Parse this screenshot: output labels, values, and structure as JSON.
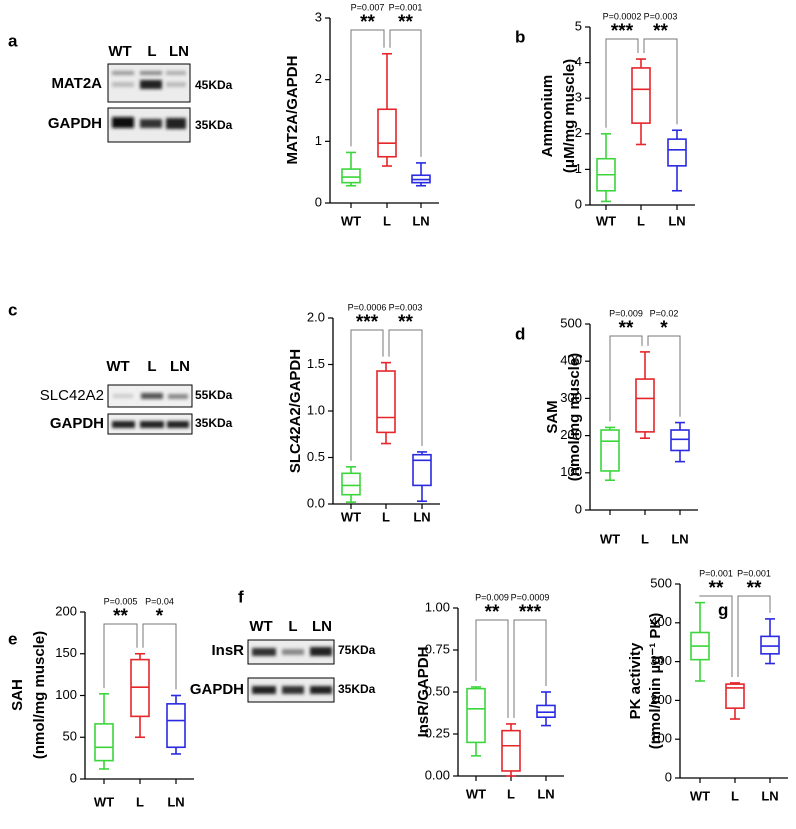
{
  "panel_labels": [
    "a",
    "b",
    "c",
    "d",
    "e",
    "f",
    "g"
  ],
  "blots": [
    {
      "lanes": [
        "WT",
        "L",
        "LN"
      ],
      "rows": [
        {
          "name": "MAT2A",
          "size": "45KDa"
        },
        {
          "name": "GAPDH",
          "size": "35KDa"
        }
      ]
    },
    {
      "lanes": [
        "WT",
        "L",
        "LN"
      ],
      "rows": [
        {
          "name": "SLC42A2",
          "size": "55KDa"
        },
        {
          "name": "GAPDH",
          "size": "35KDa"
        }
      ]
    },
    {
      "lanes": [
        "WT",
        "L",
        "LN"
      ],
      "rows": [
        {
          "name": "InsR",
          "size": "75KDa"
        },
        {
          "name": "GAPDH",
          "size": "35KDa"
        }
      ]
    }
  ],
  "chart_data": [
    {
      "type": "box",
      "ylabel": [
        "MAT2A/GAPDH"
      ],
      "categories": [
        "WT",
        "L",
        "LN"
      ],
      "colors": [
        "#3cd63c",
        "#e5262b",
        "#2a2ae0"
      ],
      "boxes": [
        {
          "min": 0.28,
          "q1": 0.33,
          "median": 0.42,
          "q3": 0.55,
          "max": 0.82
        },
        {
          "min": 0.6,
          "q1": 0.75,
          "median": 0.97,
          "q3": 1.52,
          "max": 2.42
        },
        {
          "min": 0.28,
          "q1": 0.33,
          "median": 0.38,
          "q3": 0.45,
          "max": 0.65
        }
      ],
      "ylim": [
        0,
        3
      ],
      "yticks": [
        0,
        1,
        2,
        3
      ],
      "comparisons": [
        {
          "p_label": "P=0.007",
          "stars": "**"
        },
        {
          "p_label": "P=0.001",
          "stars": "**"
        }
      ]
    },
    {
      "type": "box",
      "ylabel": [
        "Ammonium",
        "(μM/mg muscle)"
      ],
      "categories": [
        "WT",
        "L",
        "LN"
      ],
      "colors": [
        "#3cd63c",
        "#e5262b",
        "#2a2ae0"
      ],
      "boxes": [
        {
          "min": 0.1,
          "q1": 0.4,
          "median": 0.85,
          "q3": 1.3,
          "max": 2.0
        },
        {
          "min": 1.7,
          "q1": 2.3,
          "median": 3.25,
          "q3": 3.85,
          "max": 4.1
        },
        {
          "min": 0.4,
          "q1": 1.1,
          "median": 1.55,
          "q3": 1.85,
          "max": 2.1
        }
      ],
      "ylim": [
        0,
        5
      ],
      "yticks": [
        0,
        1,
        2,
        3,
        4,
        5
      ],
      "comparisons": [
        {
          "p_label": "P=0.0002",
          "stars": "***"
        },
        {
          "p_label": "P=0.003",
          "stars": "**"
        }
      ]
    },
    {
      "type": "box",
      "ylabel": [
        "SLC42A2/GAPDH"
      ],
      "categories": [
        "WT",
        "L",
        "LN"
      ],
      "colors": [
        "#3cd63c",
        "#e5262b",
        "#2a2ae0"
      ],
      "boxes": [
        {
          "min": 0.02,
          "q1": 0.1,
          "median": 0.2,
          "q3": 0.33,
          "max": 0.4
        },
        {
          "min": 0.65,
          "q1": 0.77,
          "median": 0.93,
          "q3": 1.43,
          "max": 1.52
        },
        {
          "min": 0.03,
          "q1": 0.2,
          "median": 0.47,
          "q3": 0.53,
          "max": 0.56
        }
      ],
      "ylim": [
        0,
        2
      ],
      "yticks": [
        {
          "value": 0,
          "label": "0.0"
        },
        0.5,
        {
          "value": 1,
          "label": "1.0"
        },
        1.5,
        {
          "value": 2,
          "label": "2.0"
        }
      ],
      "comparisons": [
        {
          "p_label": "P=0.0006",
          "stars": "***"
        },
        {
          "p_label": "P=0.003",
          "stars": "**"
        }
      ]
    },
    {
      "type": "box",
      "ylabel": [
        "SAM",
        "(nmol/mg muscle)"
      ],
      "categories": [
        "WT",
        "L",
        "LN"
      ],
      "colors": [
        "#3cd63c",
        "#e5262b",
        "#2a2ae0"
      ],
      "boxes": [
        {
          "min": 80,
          "q1": 105,
          "median": 185,
          "q3": 215,
          "max": 222
        },
        {
          "min": 193,
          "q1": 210,
          "median": 300,
          "q3": 352,
          "max": 425
        },
        {
          "min": 130,
          "q1": 160,
          "median": 190,
          "q3": 215,
          "max": 235
        }
      ],
      "ylim": [
        0,
        500
      ],
      "yticks": [
        0,
        100,
        200,
        300,
        400,
        500
      ],
      "comparisons": [
        {
          "p_label": "P=0.009",
          "stars": "**"
        },
        {
          "p_label": "P=0.02",
          "stars": "*"
        }
      ]
    },
    {
      "type": "box",
      "ylabel": [
        "SAH",
        "(nmol/mg muscle)"
      ],
      "categories": [
        "WT",
        "L",
        "LN"
      ],
      "colors": [
        "#3cd63c",
        "#e5262b",
        "#2a2ae0"
      ],
      "boxes": [
        {
          "min": 12,
          "q1": 22,
          "median": 38,
          "q3": 66,
          "max": 102
        },
        {
          "min": 50,
          "q1": 75,
          "median": 110,
          "q3": 143,
          "max": 150
        },
        {
          "min": 30,
          "q1": 38,
          "median": 70,
          "q3": 90,
          "max": 100
        }
      ],
      "ylim": [
        0,
        200
      ],
      "yticks": [
        0,
        50,
        100,
        150,
        200
      ],
      "comparisons": [
        {
          "p_label": "P=0.005",
          "stars": "**"
        },
        {
          "p_label": "P=0.04",
          "stars": "*"
        }
      ]
    },
    {
      "type": "box",
      "ylabel": [
        "InsR/GAPDH"
      ],
      "categories": [
        "WT",
        "L",
        "LN"
      ],
      "colors": [
        "#3cd63c",
        "#e5262b",
        "#2a2ae0"
      ],
      "boxes": [
        {
          "min": 0.12,
          "q1": 0.2,
          "median": 0.4,
          "q3": 0.52,
          "max": 0.53
        },
        {
          "min": 0.0,
          "q1": 0.03,
          "median": 0.18,
          "q3": 0.27,
          "max": 0.31
        },
        {
          "min": 0.3,
          "q1": 0.35,
          "median": 0.38,
          "q3": 0.42,
          "max": 0.5
        }
      ],
      "ylim": [
        0,
        1
      ],
      "yticks": [
        {
          "value": 0,
          "label": "0.00"
        },
        0.25,
        {
          "value": 0.5,
          "label": "0.50"
        },
        0.75,
        {
          "value": 1,
          "label": "1.00"
        }
      ],
      "comparisons": [
        {
          "p_label": "P=0.009",
          "stars": "**"
        },
        {
          "p_label": "P=0.0009",
          "stars": "***"
        }
      ]
    },
    {
      "type": "box",
      "ylabel": [
        "PK activity",
        "(nmol/min µg⁻¹ PK)"
      ],
      "categories": [
        "WT",
        "L",
        "LN"
      ],
      "colors": [
        "#3cd63c",
        "#e5262b",
        "#2a2ae0"
      ],
      "boxes": [
        {
          "min": 250,
          "q1": 305,
          "median": 340,
          "q3": 375,
          "max": 452
        },
        {
          "min": 152,
          "q1": 180,
          "median": 232,
          "q3": 242,
          "max": 245
        },
        {
          "min": 295,
          "q1": 320,
          "median": 340,
          "q3": 365,
          "max": 410
        }
      ],
      "ylim": [
        0,
        500
      ],
      "yticks": [
        0,
        100,
        200,
        300,
        400,
        500
      ],
      "comparisons": [
        {
          "p_label": "P=0.001",
          "stars": "**"
        },
        {
          "p_label": "P=0.001",
          "stars": "**"
        }
      ]
    }
  ]
}
